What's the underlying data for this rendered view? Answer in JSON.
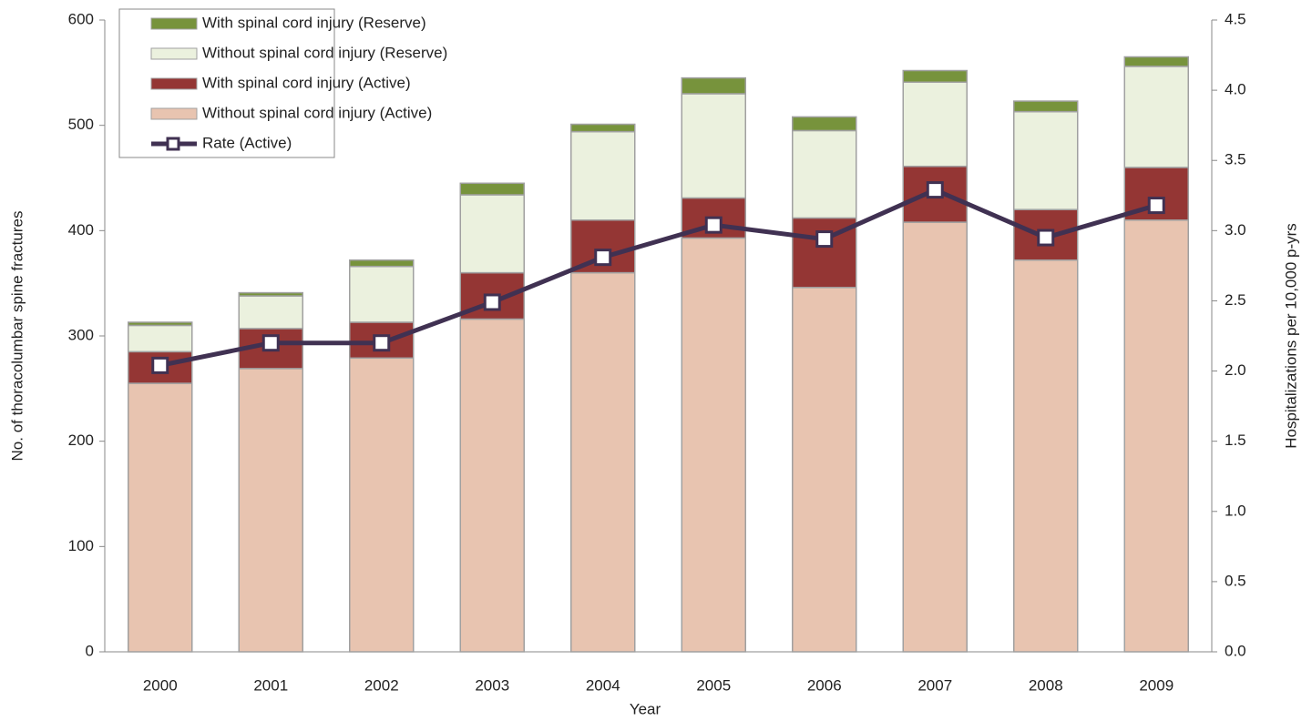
{
  "chart_data": {
    "type": "bar",
    "stacked": true,
    "x_label": "Year",
    "y_label": "No. of  thoracolumbar spine fractures",
    "y2_label": "Hospitalizations per 10,000 p-yrs",
    "categories": [
      "2000",
      "2001",
      "2002",
      "2003",
      "2004",
      "2005",
      "2006",
      "2007",
      "2008",
      "2009"
    ],
    "series": [
      {
        "name": "Without spinal cord injury (Active)",
        "color": "#e8c4b0",
        "values": [
          255,
          269,
          279,
          316,
          360,
          393,
          346,
          408,
          372,
          410
        ]
      },
      {
        "name": "With spinal cord injury (Active)",
        "color": "#943634",
        "values": [
          30,
          38,
          34,
          44,
          50,
          38,
          66,
          53,
          48,
          50
        ]
      },
      {
        "name": "Without spinal cord injury (Reserve)",
        "color": "#ebf1de",
        "values": [
          25,
          31,
          53,
          74,
          84,
          99,
          83,
          80,
          93,
          96
        ]
      },
      {
        "name": "With spinal cord injury (Reserve)",
        "color": "#77933c",
        "values": [
          3,
          3,
          6,
          11,
          7,
          15,
          13,
          11,
          10,
          9
        ]
      },
      {
        "name": "Rate (Active)",
        "color": "#403152",
        "type": "line",
        "axis": "y2",
        "values": [
          2.04,
          2.2,
          2.2,
          2.49,
          2.81,
          3.04,
          2.94,
          3.29,
          2.95,
          3.18
        ]
      }
    ],
    "ylim": [
      0,
      600
    ],
    "yticks": [
      0,
      100,
      200,
      300,
      400,
      500,
      600
    ],
    "y2lim": [
      0,
      4.5
    ],
    "y2ticks": [
      {
        "value": 0,
        "label": "0.0"
      },
      0.5,
      {
        "value": 1,
        "label": "1.0"
      },
      1.5,
      {
        "value": 2,
        "label": "2.0"
      },
      2.5,
      {
        "value": 3,
        "label": "3.0"
      },
      3.5,
      {
        "value": 4,
        "label": "4.0"
      },
      4.5
    ],
    "grid": false,
    "legend": "upper left"
  }
}
